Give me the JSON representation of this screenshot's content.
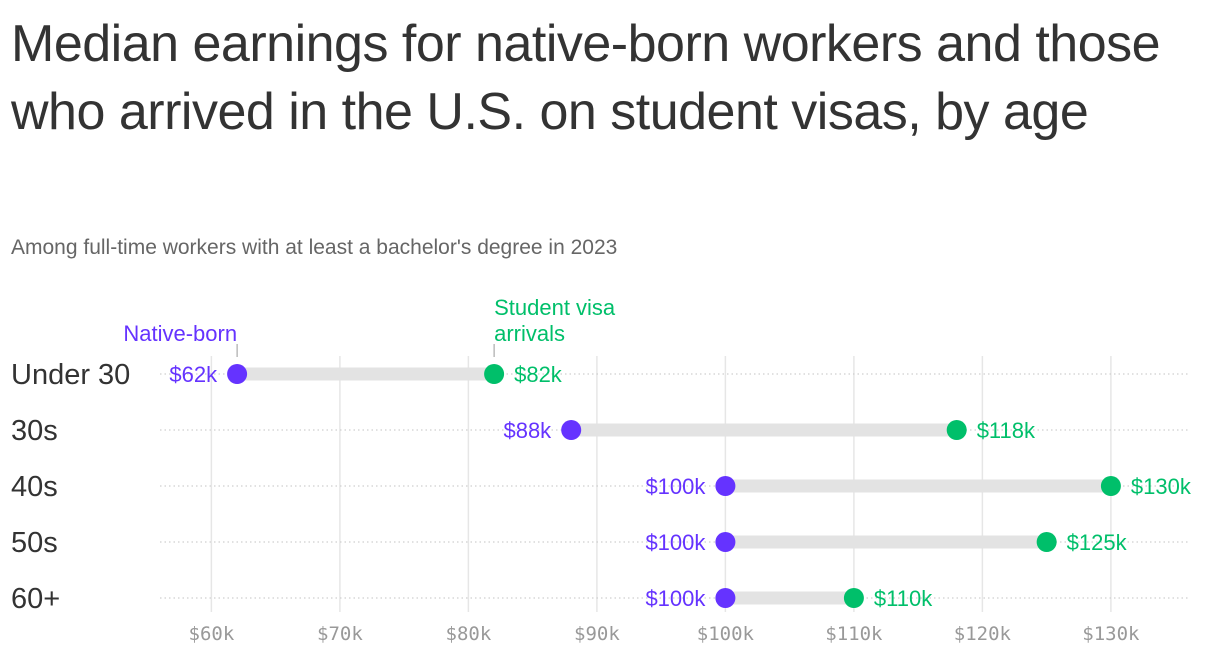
{
  "header": {
    "title": "Median earnings for native-born workers and those who arrived in the U.S. on student visas, by age",
    "subtitle": "Among full-time workers with at least a bachelor's degree in 2023"
  },
  "colors": {
    "native": "#6533ff",
    "student": "#00bf6a",
    "connector": "#e3e3e3",
    "grid": "#e6e6e6"
  },
  "chart_data": {
    "type": "dumbbell",
    "xlim": [
      56000,
      136000
    ],
    "x_ticks": [
      {
        "value": 60000,
        "label": "$60k"
      },
      {
        "value": 70000,
        "label": "$70k"
      },
      {
        "value": 80000,
        "label": "$80k"
      },
      {
        "value": 90000,
        "label": "$90k"
      },
      {
        "value": 100000,
        "label": "$100k"
      },
      {
        "value": 110000,
        "label": "$110k"
      },
      {
        "value": 120000,
        "label": "$120k"
      },
      {
        "value": 130000,
        "label": "$130k"
      }
    ],
    "categories": [
      "Under 30",
      "30s",
      "40s",
      "50s",
      "60+"
    ],
    "series": [
      {
        "name": "Native-born",
        "legend_label": "Native-born",
        "color": "#6533ff",
        "values": [
          62000,
          88000,
          100000,
          100000,
          100000
        ],
        "labels": [
          "$62k",
          "$88k",
          "$100k",
          "$100k",
          "$100k"
        ]
      },
      {
        "name": "Student visa arrivals",
        "legend_label": [
          "Student visa",
          "arrivals"
        ],
        "color": "#00bf6a",
        "values": [
          82000,
          118000,
          130000,
          125000,
          110000
        ],
        "labels": [
          "$82k",
          "$118k",
          "$130k",
          "$125k",
          "$110k"
        ]
      }
    ],
    "grid": true
  }
}
